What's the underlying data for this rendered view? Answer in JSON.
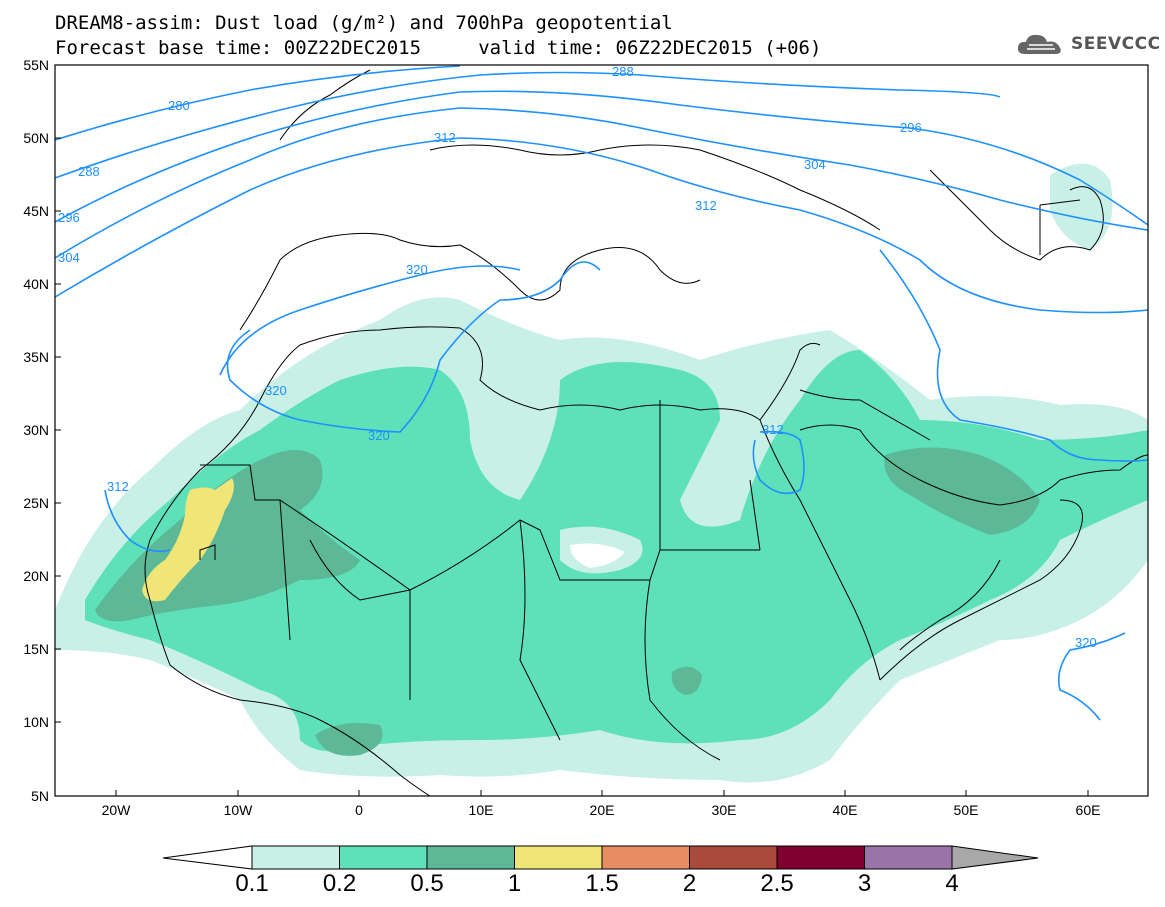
{
  "header": {
    "title_line1": "DREAM8-assim: Dust load (g/m²) and 700hPa geopotential",
    "title_line2": "Forecast base time: 00Z22DEC2015     valid time: 06Z22DEC2015 (+06)",
    "logo_text": "SEEVCCC"
  },
  "axes": {
    "lat_labels": [
      "55N",
      "50N",
      "45N",
      "40N",
      "35N",
      "30N",
      "25N",
      "20N",
      "15N",
      "10N",
      "5N"
    ],
    "lon_labels": [
      "20W",
      "10W",
      "0",
      "10E",
      "20E",
      "30E",
      "40E",
      "50E",
      "60E"
    ]
  },
  "contours": {
    "color": "#1e90ff",
    "labels": [
      "280",
      "288",
      "296",
      "304",
      "312",
      "320",
      "288",
      "296",
      "304",
      "312",
      "320",
      "312",
      "320",
      "312",
      "320"
    ]
  },
  "colorbar": {
    "ticks": [
      "0.1",
      "0.2",
      "0.5",
      "1",
      "1.5",
      "2",
      "2.5",
      "3",
      "4"
    ],
    "colors": [
      "#c8f0e6",
      "#5ee0b8",
      "#5cb896",
      "#f0e678",
      "#e88c64",
      "#a84a3c",
      "#800030",
      "#9a74a8"
    ],
    "under_color": "#ffffff",
    "over_color": "#a8a8a8"
  },
  "legend_colors": {
    "light": "#c8f0e6",
    "mid": "#5ee0b8",
    "dark": "#5cb896",
    "yellow": "#f0e678"
  }
}
